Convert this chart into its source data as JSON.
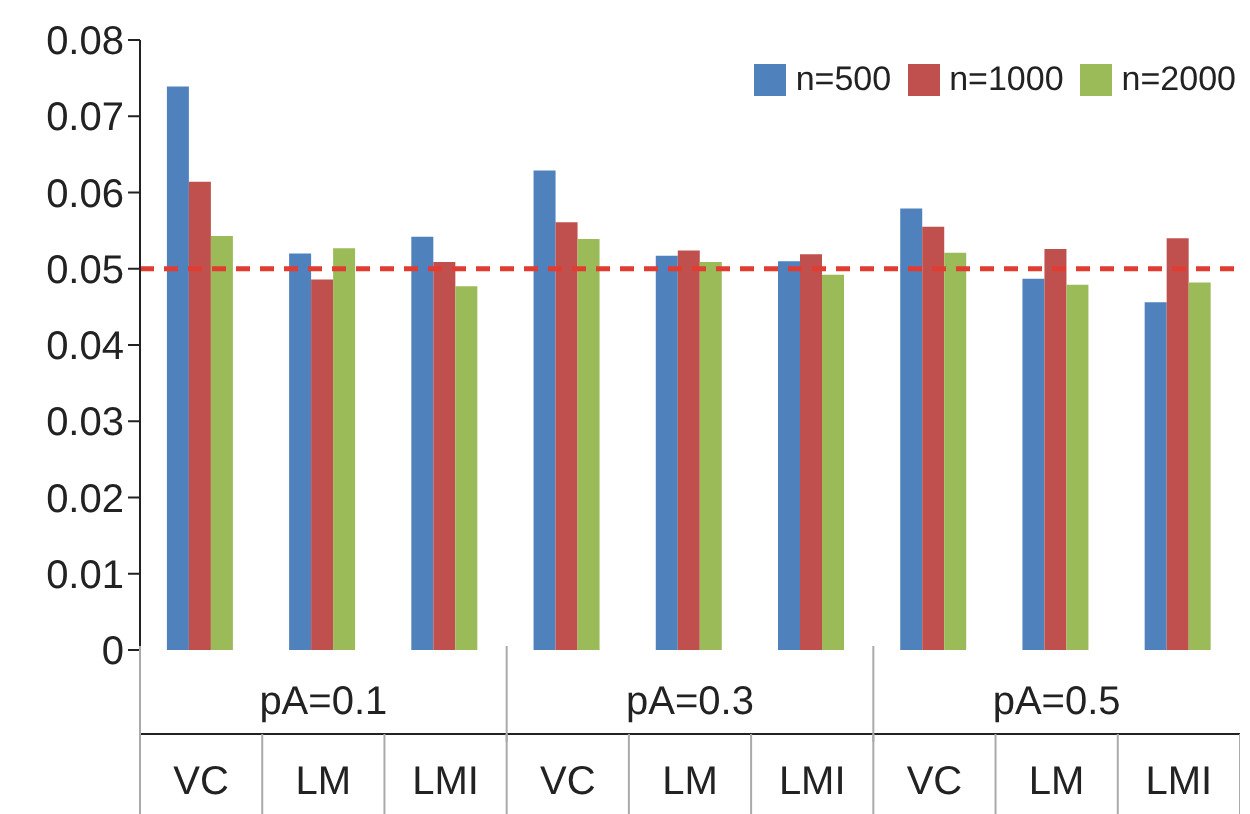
{
  "chart_data": {
    "type": "bar",
    "categories": [
      "VC",
      "LM",
      "LMI",
      "VC",
      "LM",
      "LMI",
      "VC",
      "LM",
      "LMI"
    ],
    "series": [
      {
        "name": "n=500",
        "color": "#4f81bd",
        "values": [
          0.0739,
          0.052,
          0.0542,
          0.0629,
          0.0517,
          0.051,
          0.0579,
          0.0487,
          0.0456
        ]
      },
      {
        "name": "n=1000",
        "color": "#c0504d",
        "values": [
          0.0614,
          0.0486,
          0.0509,
          0.0561,
          0.0524,
          0.0519,
          0.0555,
          0.0526,
          0.054
        ]
      },
      {
        "name": "n=2000",
        "color": "#9bbb59",
        "values": [
          0.0543,
          0.0527,
          0.0477,
          0.0539,
          0.0509,
          0.0492,
          0.0521,
          0.0479,
          0.0482
        ]
      }
    ],
    "ylim": [
      0,
      0.08
    ],
    "yticks": [
      0,
      0.01,
      0.02,
      0.03,
      0.04,
      0.05,
      0.06,
      0.07,
      0.08
    ],
    "ref_lines": [
      {
        "axis": "y",
        "value": 0.05,
        "color": "#e03c31",
        "line_style": "dashed"
      }
    ],
    "annotations": [
      "pA=0.1",
      "pA=0.3",
      "pA=0.5"
    ],
    "legend": "top right"
  }
}
